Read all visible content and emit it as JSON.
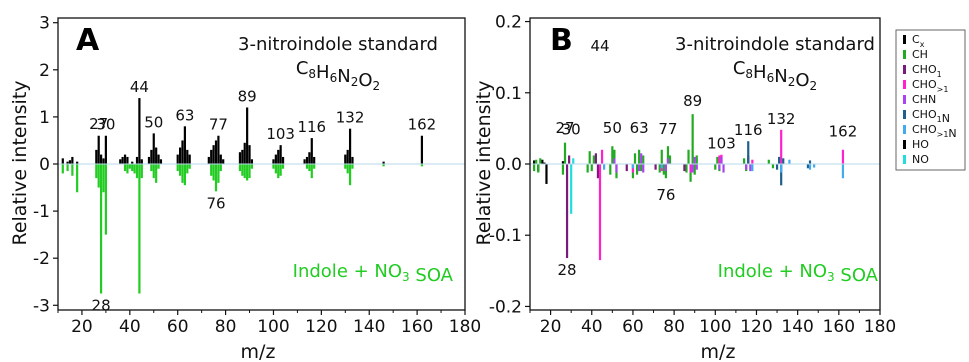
{
  "chart_data": [
    {
      "type": "bar",
      "panel_letter": "A",
      "title": "3-nitroindole standard",
      "formula": "C8H6N2O2",
      "annotation": "Indole + NO3 SOA",
      "xlabel": "m/z",
      "ylabel": "Relative intensity",
      "xlim": [
        10,
        180
      ],
      "ylim": [
        -3.1,
        3.1
      ],
      "xticks": [
        "20",
        "40",
        "60",
        "80",
        "100",
        "120",
        "140",
        "160",
        "180"
      ],
      "yticks": [
        "-3",
        "-2",
        "-1",
        "0",
        "1",
        "2",
        "3"
      ],
      "peak_labels": [
        {
          "mz": 27,
          "text": "27",
          "y": 0.62
        },
        {
          "mz": 30,
          "text": "30",
          "y": 0.6
        },
        {
          "mz": 44,
          "text": "44",
          "y": 1.4
        },
        {
          "mz": 50,
          "text": "50",
          "y": 0.65
        },
        {
          "mz": 63,
          "text": "63",
          "y": 0.8
        },
        {
          "mz": 77,
          "text": "77",
          "y": 0.6
        },
        {
          "mz": 89,
          "text": "89",
          "y": 1.2
        },
        {
          "mz": 103,
          "text": "103",
          "y": 0.4
        },
        {
          "mz": 116,
          "text": "116",
          "y": 0.55
        },
        {
          "mz": 132,
          "text": "132",
          "y": 0.75
        },
        {
          "mz": 162,
          "text": "162",
          "y": 0.6
        },
        {
          "mz": 76,
          "text": "76",
          "y": -0.58
        },
        {
          "mz": 28,
          "text": "28",
          "y": -2.75
        }
      ],
      "series": [
        {
          "color": "#000000",
          "x": [
            12,
            14,
            15,
            16,
            18,
            26,
            27,
            28,
            29,
            30,
            36,
            37,
            38,
            39,
            41,
            43,
            44,
            45,
            48,
            49,
            50,
            51,
            52,
            53,
            60,
            61,
            62,
            63,
            64,
            65,
            73,
            74,
            75,
            76,
            77,
            78,
            79,
            86,
            87,
            88,
            89,
            90,
            91,
            100,
            101,
            102,
            103,
            104,
            113,
            114,
            115,
            116,
            117,
            130,
            131,
            132,
            133,
            146,
            162
          ],
          "values": [
            0.12,
            0.05,
            0.08,
            0.15,
            0.05,
            0.3,
            0.6,
            0.2,
            0.12,
            0.6,
            0.1,
            0.15,
            0.2,
            0.15,
            0.05,
            0.15,
            1.4,
            0.1,
            0.15,
            0.3,
            0.65,
            0.35,
            0.2,
            0.1,
            0.2,
            0.35,
            0.5,
            0.8,
            0.3,
            0.2,
            0.15,
            0.3,
            0.4,
            0.5,
            0.6,
            0.2,
            0.1,
            0.25,
            0.3,
            0.45,
            1.2,
            0.4,
            0.1,
            0.1,
            0.2,
            0.3,
            0.4,
            0.15,
            0.1,
            0.15,
            0.25,
            0.55,
            0.15,
            0.2,
            0.3,
            0.75,
            0.15,
            0.05,
            0.6
          ]
        },
        {
          "color": "#22cc22",
          "x": [
            12,
            14,
            16,
            18,
            26,
            27,
            28,
            29,
            30,
            38,
            39,
            40,
            41,
            42,
            43,
            44,
            45,
            49,
            50,
            51,
            52,
            60,
            61,
            62,
            63,
            64,
            65,
            74,
            75,
            76,
            77,
            78,
            86,
            87,
            88,
            89,
            90,
            91,
            100,
            101,
            102,
            103,
            104,
            114,
            115,
            116,
            117,
            130,
            131,
            132,
            133,
            146,
            162
          ],
          "values": [
            -0.2,
            -0.15,
            -0.25,
            -0.6,
            -0.3,
            -0.5,
            -2.75,
            -0.6,
            -1.5,
            -0.15,
            -0.2,
            -0.1,
            -0.15,
            -0.2,
            -0.3,
            -2.75,
            -0.3,
            -0.15,
            -0.3,
            -0.4,
            -0.1,
            -0.15,
            -0.25,
            -0.4,
            -0.45,
            -0.2,
            -0.1,
            -0.25,
            -0.35,
            -0.58,
            -0.4,
            -0.15,
            -0.15,
            -0.25,
            -0.3,
            -0.35,
            -0.3,
            -0.1,
            -0.1,
            -0.2,
            -0.3,
            -0.25,
            -0.1,
            -0.1,
            -0.15,
            -0.3,
            -0.1,
            -0.1,
            -0.2,
            -0.45,
            -0.1,
            -0.05,
            -0.05
          ]
        }
      ]
    },
    {
      "type": "bar",
      "panel_letter": "B",
      "title": "3-nitroindole standard",
      "formula": "C8H6N2O2",
      "annotation": "Indole + NO3 SOA",
      "xlabel": "m/z",
      "ylabel": "Relative intensity",
      "xlim": [
        10,
        180
      ],
      "ylim": [
        -0.205,
        0.205
      ],
      "xticks": [
        "20",
        "40",
        "60",
        "80",
        "100",
        "120",
        "140",
        "160",
        "180"
      ],
      "yticks": [
        "-0.2",
        "-0.1",
        "0.0",
        "0.1",
        "0.2"
      ],
      "peak_labels": [
        {
          "mz": 27,
          "text": "27",
          "y": 0.035
        },
        {
          "mz": 30,
          "text": "30",
          "y": 0.033
        },
        {
          "mz": 44,
          "text": "44",
          "y": 0.15
        },
        {
          "mz": 50,
          "text": "50",
          "y": 0.035
        },
        {
          "mz": 63,
          "text": "63",
          "y": 0.035
        },
        {
          "mz": 77,
          "text": "77",
          "y": 0.034
        },
        {
          "mz": 89,
          "text": "89",
          "y": 0.073
        },
        {
          "mz": 103,
          "text": "103",
          "y": 0.013
        },
        {
          "mz": 116,
          "text": "116",
          "y": 0.032
        },
        {
          "mz": 132,
          "text": "132",
          "y": 0.048
        },
        {
          "mz": 162,
          "text": "162",
          "y": 0.03
        },
        {
          "mz": 76,
          "text": "76",
          "y": -0.027
        },
        {
          "mz": 28,
          "text": "28",
          "y": -0.132
        }
      ],
      "legend": {
        "placement": "right",
        "entries": [
          {
            "label": "Cx",
            "color": "#000000"
          },
          {
            "label": "CH",
            "color": "#22aa22"
          },
          {
            "label": "CHO1",
            "color": "#7a1a7a"
          },
          {
            "label": "CHO>1",
            "color": "#ff22cc"
          },
          {
            "label": "CHN",
            "color": "#aa44ee"
          },
          {
            "label": "CHO1N",
            "color": "#1f5f8b"
          },
          {
            "label": "CHO>1N",
            "color": "#44aaee"
          },
          {
            "label": "HO",
            "color": "#000000"
          },
          {
            "label": "NO",
            "color": "#22dddd"
          }
        ]
      },
      "series": [
        {
          "name": "Cx",
          "color": "#000000",
          "x": [
            12,
            14,
            16,
            18,
            26
          ],
          "values": [
            0.005,
            -0.01,
            0.006,
            -0.028,
            0.004
          ]
        },
        {
          "name": "CH",
          "color": "#22aa22",
          "x": [
            12,
            13,
            14,
            15,
            26,
            27,
            38,
            39,
            40,
            41,
            49,
            50,
            51,
            52,
            60,
            61,
            62,
            63,
            64,
            65,
            73,
            74,
            75,
            76,
            77,
            78,
            86,
            87,
            88,
            89,
            90,
            91,
            100,
            101,
            102,
            114,
            115,
            116,
            126,
            128
          ],
          "values": [
            -0.01,
            0.006,
            -0.012,
            0.008,
            -0.015,
            0.03,
            -0.012,
            0.018,
            -0.01,
            0.012,
            -0.015,
            0.025,
            0.02,
            -0.02,
            -0.02,
            0.015,
            -0.015,
            0.02,
            -0.01,
            0.012,
            -0.012,
            0.02,
            -0.015,
            -0.02,
            0.025,
            0.012,
            -0.012,
            0.02,
            -0.025,
            0.07,
            -0.015,
            0.012,
            -0.008,
            0.01,
            -0.01,
            0.008,
            -0.01,
            0.01,
            0.006,
            -0.006
          ]
        },
        {
          "name": "CHO1",
          "color": "#7a1a7a",
          "x": [
            28,
            29,
            42,
            43,
            57,
            71,
            85
          ],
          "values": [
            -0.132,
            0.012,
            0.015,
            -0.02,
            -0.01,
            -0.008,
            -0.01
          ]
        },
        {
          "name": "CHO>1",
          "color": "#ff22cc",
          "x": [
            44,
            45,
            60,
            74,
            88,
            102,
            103,
            118,
            132,
            162
          ],
          "values": [
            -0.135,
            0.02,
            -0.012,
            -0.01,
            -0.012,
            0.012,
            0.013,
            0.006,
            0.048,
            0.02
          ]
        },
        {
          "name": "CHN",
          "color": "#aa44ee",
          "x": [
            51,
            52,
            63,
            64,
            65,
            76,
            77,
            89,
            90,
            91,
            102,
            103,
            104,
            115,
            116,
            117
          ],
          "values": [
            0.008,
            -0.012,
            -0.01,
            0.015,
            -0.012,
            -0.01,
            0.008,
            -0.012,
            0.01,
            -0.008,
            -0.008,
            0.01,
            -0.012,
            -0.008,
            0.012,
            -0.01
          ]
        },
        {
          "name": "CHO1N",
          "color": "#1f5f8b",
          "x": [
            116,
            130,
            131,
            132,
            133,
            145,
            146
          ],
          "values": [
            0.032,
            -0.008,
            0.01,
            -0.03,
            0.008,
            -0.006,
            0.005
          ]
        },
        {
          "name": "CHO>1N",
          "color": "#44aaee",
          "x": [
            46,
            60,
            74,
            118,
            132,
            136,
            146,
            148,
            162
          ],
          "values": [
            -0.008,
            -0.006,
            -0.006,
            -0.01,
            -0.012,
            0.006,
            -0.008,
            -0.005,
            -0.02
          ]
        },
        {
          "name": "HO",
          "color": "#000000",
          "x": [
            17
          ],
          "values": [
            0.002
          ]
        },
        {
          "name": "NO",
          "color": "#22dddd",
          "x": [
            30,
            31
          ],
          "values": [
            -0.07,
            0.008
          ]
        }
      ]
    }
  ]
}
